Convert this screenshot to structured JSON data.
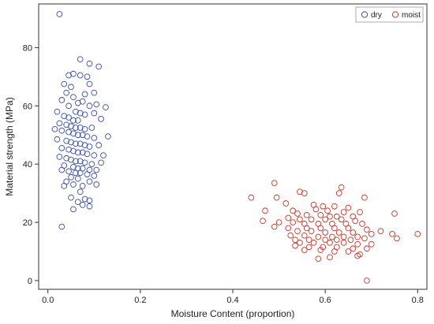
{
  "chart_data": {
    "type": "scatter",
    "title": "",
    "xlabel": "Moisture Content (proportion)",
    "ylabel": "Material strength (MPa)",
    "xlim": [
      -0.02,
      0.82
    ],
    "ylim": [
      -3,
      95
    ],
    "xticks": [
      0.0,
      0.2,
      0.4,
      0.6,
      0.8
    ],
    "xtick_labels": [
      "0.0",
      "0.2",
      "0.4",
      "0.6",
      "0.8"
    ],
    "yticks": [
      0,
      20,
      40,
      60,
      80
    ],
    "ytick_labels": [
      "0",
      "20",
      "40",
      "60",
      "80"
    ],
    "grid": false,
    "legend_position": "top-right",
    "series": [
      {
        "name": "dry",
        "color": "#3a50a0",
        "marker": "open-circle",
        "points": [
          [
            0.025,
            91.5
          ],
          [
            0.07,
            76
          ],
          [
            0.09,
            74.5
          ],
          [
            0.11,
            73.5
          ],
          [
            0.07,
            70.5
          ],
          [
            0.085,
            70
          ],
          [
            0.045,
            70.5
          ],
          [
            0.055,
            71
          ],
          [
            0.035,
            67.5
          ],
          [
            0.05,
            66.5
          ],
          [
            0.09,
            67.5
          ],
          [
            0.04,
            64.5
          ],
          [
            0.055,
            63
          ],
          [
            0.08,
            64
          ],
          [
            0.1,
            64.5
          ],
          [
            0.03,
            62
          ],
          [
            0.065,
            61
          ],
          [
            0.075,
            61.5
          ],
          [
            0.045,
            60
          ],
          [
            0.09,
            60
          ],
          [
            0.105,
            60.5
          ],
          [
            0.125,
            59.5
          ],
          [
            0.02,
            58
          ],
          [
            0.06,
            58
          ],
          [
            0.07,
            57.5
          ],
          [
            0.08,
            57
          ],
          [
            0.1,
            57.5
          ],
          [
            0.035,
            56.5
          ],
          [
            0.045,
            56
          ],
          [
            0.055,
            55
          ],
          [
            0.065,
            55
          ],
          [
            0.115,
            55.5
          ],
          [
            0.025,
            54
          ],
          [
            0.04,
            53.5
          ],
          [
            0.05,
            53
          ],
          [
            0.06,
            52.5
          ],
          [
            0.07,
            52.5
          ],
          [
            0.08,
            52
          ],
          [
            0.095,
            52.5
          ],
          [
            0.015,
            52
          ],
          [
            0.03,
            51.5
          ],
          [
            0.045,
            51
          ],
          [
            0.055,
            50.5
          ],
          [
            0.065,
            50
          ],
          [
            0.075,
            50
          ],
          [
            0.085,
            49.5
          ],
          [
            0.1,
            49
          ],
          [
            0.13,
            49.5
          ],
          [
            0.02,
            48.5
          ],
          [
            0.04,
            48
          ],
          [
            0.05,
            47.5
          ],
          [
            0.06,
            47
          ],
          [
            0.07,
            47
          ],
          [
            0.08,
            46.5
          ],
          [
            0.09,
            46
          ],
          [
            0.11,
            46.5
          ],
          [
            0.03,
            45.5
          ],
          [
            0.045,
            45
          ],
          [
            0.055,
            44.5
          ],
          [
            0.065,
            44
          ],
          [
            0.075,
            44
          ],
          [
            0.085,
            43.5
          ],
          [
            0.1,
            43
          ],
          [
            0.12,
            43
          ],
          [
            0.025,
            42.5
          ],
          [
            0.04,
            42
          ],
          [
            0.05,
            41.5
          ],
          [
            0.06,
            41
          ],
          [
            0.07,
            41
          ],
          [
            0.08,
            40.5
          ],
          [
            0.095,
            40
          ],
          [
            0.115,
            40.5
          ],
          [
            0.035,
            39.5
          ],
          [
            0.055,
            39
          ],
          [
            0.065,
            38.5
          ],
          [
            0.075,
            38.5
          ],
          [
            0.09,
            38
          ],
          [
            0.105,
            38
          ],
          [
            0.03,
            38
          ],
          [
            0.045,
            37.5
          ],
          [
            0.06,
            37
          ],
          [
            0.07,
            37
          ],
          [
            0.085,
            36.5
          ],
          [
            0.1,
            36
          ],
          [
            0.05,
            35.5
          ],
          [
            0.065,
            35
          ],
          [
            0.04,
            34
          ],
          [
            0.09,
            34
          ],
          [
            0.035,
            32.5
          ],
          [
            0.055,
            33
          ],
          [
            0.075,
            32.5
          ],
          [
            0.105,
            33
          ],
          [
            0.07,
            30.5
          ],
          [
            0.05,
            28.5
          ],
          [
            0.08,
            28
          ],
          [
            0.09,
            27.5
          ],
          [
            0.065,
            27
          ],
          [
            0.075,
            26
          ],
          [
            0.09,
            25.5
          ],
          [
            0.055,
            24.5
          ],
          [
            0.03,
            18.5
          ]
        ]
      },
      {
        "name": "moist",
        "color": "#c0392b",
        "marker": "open-circle",
        "points": [
          [
            0.49,
            33.5
          ],
          [
            0.635,
            32
          ],
          [
            0.545,
            30.5
          ],
          [
            0.555,
            30
          ],
          [
            0.44,
            28.5
          ],
          [
            0.495,
            28.5
          ],
          [
            0.63,
            30
          ],
          [
            0.685,
            28.5
          ],
          [
            0.515,
            26.5
          ],
          [
            0.575,
            26
          ],
          [
            0.595,
            25.5
          ],
          [
            0.62,
            25.5
          ],
          [
            0.65,
            25
          ],
          [
            0.47,
            24
          ],
          [
            0.53,
            24
          ],
          [
            0.58,
            24.5
          ],
          [
            0.605,
            24
          ],
          [
            0.64,
            23.5
          ],
          [
            0.675,
            23.5
          ],
          [
            0.75,
            23
          ],
          [
            0.54,
            23
          ],
          [
            0.56,
            22.5
          ],
          [
            0.59,
            22.5
          ],
          [
            0.61,
            22
          ],
          [
            0.625,
            22
          ],
          [
            0.66,
            22
          ],
          [
            0.52,
            21.5
          ],
          [
            0.545,
            21
          ],
          [
            0.57,
            21
          ],
          [
            0.6,
            21
          ],
          [
            0.635,
            21
          ],
          [
            0.665,
            20.5
          ],
          [
            0.465,
            20.5
          ],
          [
            0.5,
            20
          ],
          [
            0.53,
            20
          ],
          [
            0.555,
            19.5
          ],
          [
            0.585,
            19.5
          ],
          [
            0.615,
            19.5
          ],
          [
            0.645,
            19.5
          ],
          [
            0.68,
            19.5
          ],
          [
            0.49,
            18.5
          ],
          [
            0.52,
            18
          ],
          [
            0.56,
            18
          ],
          [
            0.59,
            18
          ],
          [
            0.62,
            18
          ],
          [
            0.65,
            18
          ],
          [
            0.69,
            17.5
          ],
          [
            0.72,
            17
          ],
          [
            0.54,
            17
          ],
          [
            0.57,
            17
          ],
          [
            0.6,
            16.5
          ],
          [
            0.63,
            16.5
          ],
          [
            0.66,
            16.5
          ],
          [
            0.7,
            16
          ],
          [
            0.745,
            16
          ],
          [
            0.8,
            16
          ],
          [
            0.525,
            15.5
          ],
          [
            0.555,
            15.5
          ],
          [
            0.585,
            15
          ],
          [
            0.615,
            15
          ],
          [
            0.64,
            15
          ],
          [
            0.67,
            15
          ],
          [
            0.535,
            14
          ],
          [
            0.565,
            14
          ],
          [
            0.6,
            14
          ],
          [
            0.625,
            14
          ],
          [
            0.655,
            14
          ],
          [
            0.685,
            14.5
          ],
          [
            0.755,
            14.5
          ],
          [
            0.545,
            13
          ],
          [
            0.575,
            13
          ],
          [
            0.61,
            13
          ],
          [
            0.64,
            13
          ],
          [
            0.67,
            12.5
          ],
          [
            0.7,
            12.5
          ],
          [
            0.535,
            12
          ],
          [
            0.565,
            11.5
          ],
          [
            0.595,
            11.5
          ],
          [
            0.625,
            11.5
          ],
          [
            0.66,
            11
          ],
          [
            0.69,
            11
          ],
          [
            0.555,
            10.5
          ],
          [
            0.59,
            10.5
          ],
          [
            0.62,
            10
          ],
          [
            0.65,
            10
          ],
          [
            0.675,
            9
          ],
          [
            0.61,
            8
          ],
          [
            0.67,
            8.5
          ],
          [
            0.585,
            7.5
          ],
          [
            0.69,
            0
          ]
        ]
      }
    ]
  }
}
